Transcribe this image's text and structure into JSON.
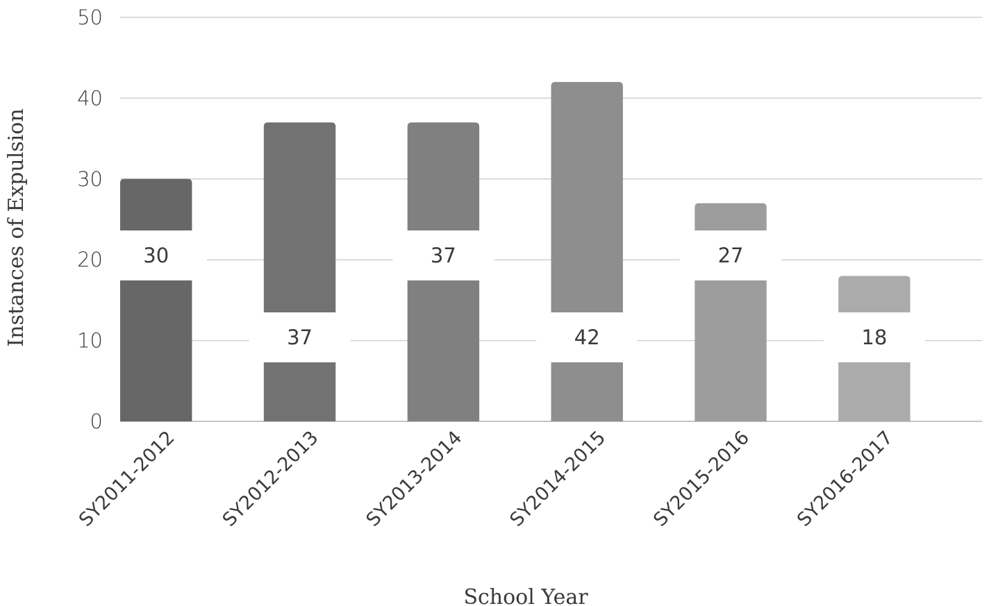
{
  "chart_data": {
    "type": "bar",
    "title": "",
    "xlabel": "School Year",
    "ylabel": "Instances of Expulsion",
    "categories": [
      "SY2011-2012",
      "SY2012-2013",
      "SY2013-2014",
      "SY2014-2015",
      "SY2015-2016",
      "SY2016-2017"
    ],
    "values": [
      30,
      37,
      37,
      42,
      27,
      18
    ],
    "data_labels": [
      "30",
      "37",
      "37",
      "42",
      "27",
      "18"
    ],
    "ylim": [
      0,
      50
    ],
    "yticks": [
      0,
      10,
      20,
      30,
      40,
      50
    ],
    "grid": true,
    "legend": "none",
    "bar_colors": [
      "#676767",
      "#727272",
      "#808080",
      "#8e8e8e",
      "#9d9d9d",
      "#ababab"
    ],
    "gridline_color": "#d0d0d0"
  }
}
